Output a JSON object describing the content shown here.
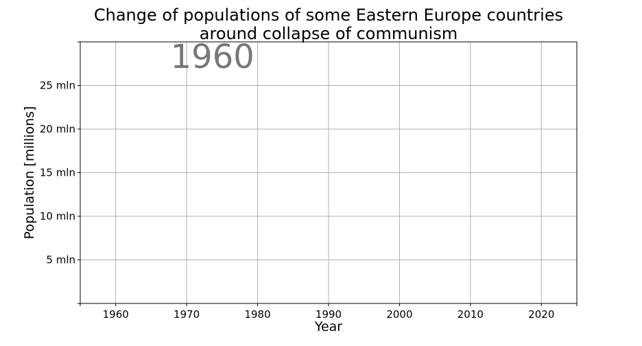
{
  "chart_data": {
    "type": "line",
    "title": "Change of populations of some Eastern Europe countries\naround collapse of communism",
    "xlabel": "Year",
    "ylabel": "Population [millions]",
    "xlim": [
      1955,
      2025
    ],
    "ylim": [
      0,
      30
    ],
    "x_ticks": [
      1960,
      1970,
      1980,
      1990,
      2000,
      2010,
      2020
    ],
    "y_ticks": [
      {
        "value": 5,
        "label": "5 mln"
      },
      {
        "value": 10,
        "label": "10 mln"
      },
      {
        "value": 15,
        "label": "15 mln"
      },
      {
        "value": 20,
        "label": "20 mln"
      },
      {
        "value": 25,
        "label": "25 mln"
      }
    ],
    "grid": true,
    "annotation": {
      "text": "1960",
      "year": 1960
    },
    "series": []
  }
}
